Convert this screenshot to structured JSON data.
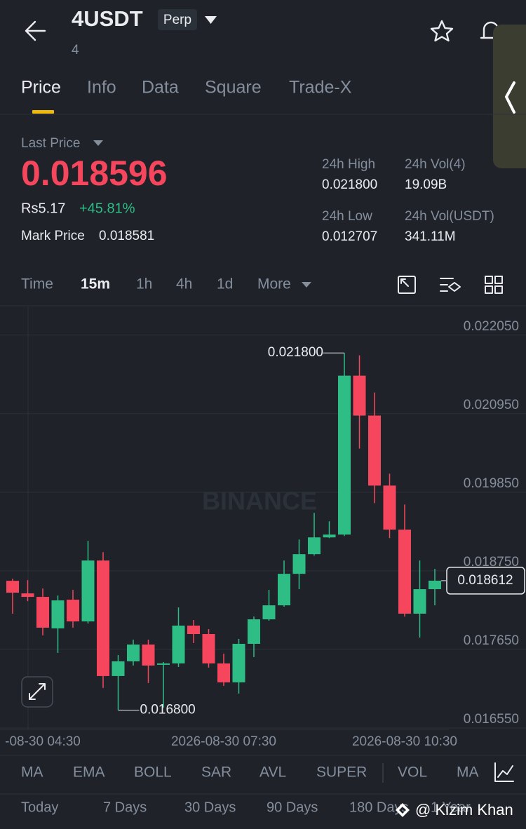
{
  "header": {
    "symbol": "4USDT",
    "badge": "Perp",
    "subtitle": "4"
  },
  "tabs": [
    "Price",
    "Info",
    "Data",
    "Square",
    "Trade-X"
  ],
  "price": {
    "label": "Last Price",
    "last": "0.018596",
    "local": "Rs5.17",
    "change": "+45.81%",
    "mark_label": "Mark Price",
    "mark": "0.018581"
  },
  "stats": [
    {
      "label": "24h High",
      "value": "0.021800"
    },
    {
      "label": "24h Vol(4)",
      "value": "19.09B"
    },
    {
      "label": "24h Low",
      "value": "0.012707"
    },
    {
      "label": "24h Vol(USDT)",
      "value": "341.11M"
    }
  ],
  "intervals": [
    "Time",
    "15m",
    "1h",
    "4h",
    "1d",
    "More"
  ],
  "chart_data": {
    "type": "candlestick",
    "watermark": "BINANCE",
    "categories": [
      null,
      null,
      "-08-30 04:30",
      null,
      null,
      null,
      null,
      null,
      null,
      null,
      null,
      null,
      null,
      null,
      "2026-08-30 07:30",
      null,
      null,
      null,
      null,
      null,
      null,
      null,
      null,
      null,
      null,
      null,
      "2026-08-30 10:30",
      null,
      null
    ],
    "open": [
      0.01861,
      0.018434,
      0.018385,
      0.017944,
      0.018346,
      0.018042,
      0.018894,
      0.017277,
      0.017483,
      0.017718,
      0.017434,
      0.017454,
      0.017983,
      0.017865,
      0.017454,
      0.017189,
      0.017728,
      0.018071,
      0.018267,
      0.018708,
      0.018983,
      0.019218,
      0.019257,
      0.021482,
      0.020923,
      0.019943,
      0.019326,
      0.01815,
      0.018493
    ],
    "high": [
      0.01864,
      0.01862,
      0.018502,
      0.018404,
      0.018483,
      0.019169,
      0.019012,
      0.017571,
      0.017787,
      0.017787,
      0.017473,
      0.018238,
      0.018061,
      0.017934,
      0.017591,
      0.017797,
      0.01811,
      0.018483,
      0.018894,
      0.019188,
      0.019561,
      0.019443,
      0.0218,
      0.021766,
      0.021246,
      0.02011,
      0.019678,
      0.018894,
      0.018777
    ],
    "low": [
      0.01815,
      0.018326,
      0.017846,
      0.017601,
      0.017954,
      0.018012,
      0.017111,
      0.0168,
      0.017424,
      0.017179,
      0.016836,
      0.017405,
      0.017738,
      0.017395,
      0.01714,
      0.017032,
      0.017542,
      0.018052,
      0.018248,
      0.018493,
      0.018963,
      0.019208,
      0.019237,
      0.020462,
      0.019698,
      0.019208,
      0.01811,
      0.017816,
      0.018267
    ],
    "close": [
      0.018444,
      0.018385,
      0.017954,
      0.018336,
      0.018042,
      0.018894,
      0.017277,
      0.017483,
      0.017718,
      0.017424,
      0.017454,
      0.017983,
      0.017865,
      0.017454,
      0.017189,
      0.017728,
      0.018071,
      0.018267,
      0.018708,
      0.018983,
      0.019218,
      0.019257,
      0.021482,
      0.020923,
      0.019943,
      0.019326,
      0.01815,
      0.018493,
      0.018612
    ],
    "up_color": "#2ebd85",
    "down_color": "#f6465d",
    "ylim": [
      0.01653,
      0.02245
    ],
    "yticks": [
      {
        "value": 0.02205,
        "label": "0.022050"
      },
      {
        "value": 0.02095,
        "label": "0.020950"
      },
      {
        "value": 0.01985,
        "label": "0.019850"
      },
      {
        "value": 0.01875,
        "label": "0.018750"
      },
      {
        "value": 0.01765,
        "label": "0.017650"
      },
      {
        "value": 0.01655,
        "label": "0.016550"
      }
    ],
    "grid": true,
    "annotations": [
      {
        "value": 0.0218,
        "label": "0.021800"
      },
      {
        "value": 0.0168,
        "label": "0.016800"
      }
    ],
    "last_price": {
      "value": 0.018612,
      "label": "0.018612"
    }
  },
  "indicators": [
    "MA",
    "EMA",
    "BOLL",
    "SAR",
    "AVL",
    "SUPER",
    "VOL",
    "MA"
  ],
  "performance": [
    "Today",
    "7 Days",
    "30 Days",
    "90 Days",
    "180 Days",
    "1 Year"
  ],
  "watermark": "@ Kizim Khan"
}
